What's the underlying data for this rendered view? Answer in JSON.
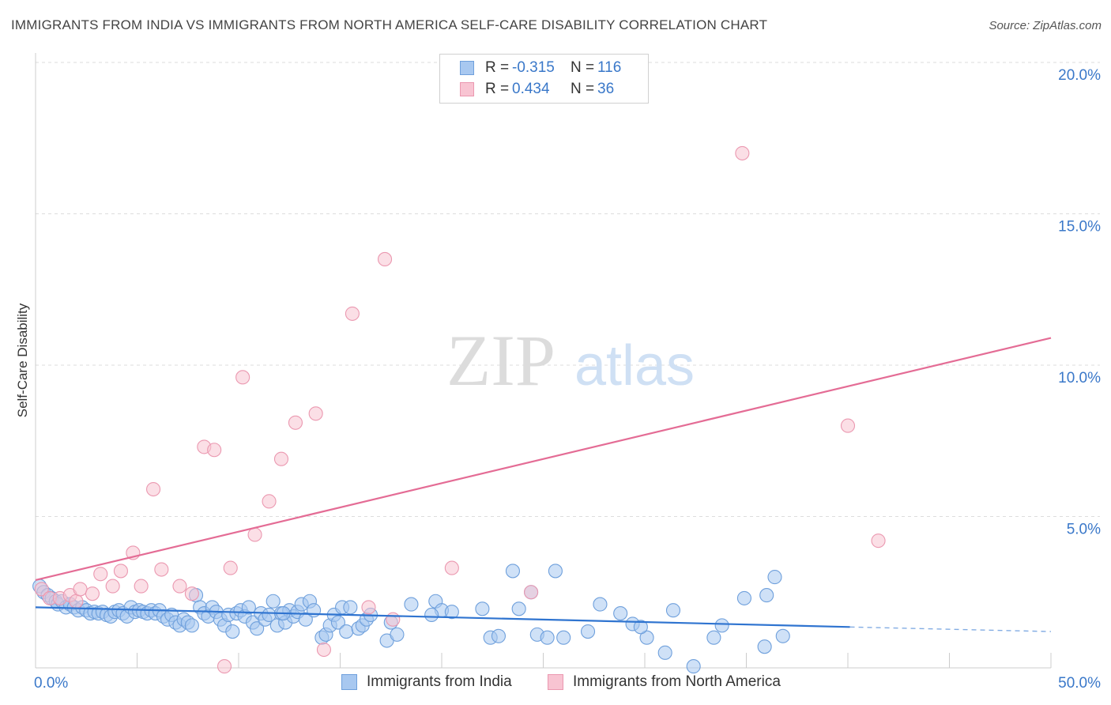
{
  "title": "IMMIGRANTS FROM INDIA VS IMMIGRANTS FROM NORTH AMERICA SELF-CARE DISABILITY CORRELATION CHART",
  "source": "Source: ZipAtlas.com",
  "watermark": {
    "zip": "ZIP",
    "atlas": "atlas"
  },
  "legend": {
    "rows": [
      {
        "r_label": "R =",
        "r_value": "-0.315",
        "n_label": "N =",
        "n_value": "116",
        "color": "#a8c8f0",
        "border": "#6fa0dc"
      },
      {
        "r_label": "R =",
        "r_value": "0.434",
        "n_label": "N =",
        "n_value": "36",
        "color": "#f8c4d2",
        "border": "#eb98b0"
      }
    ]
  },
  "chart_data": {
    "type": "scatter",
    "title": "IMMIGRANTS FROM INDIA VS IMMIGRANTS FROM NORTH AMERICA SELF-CARE DISABILITY CORRELATION CHART",
    "xlabel": "",
    "ylabel": "Self-Care Disability",
    "xlim": [
      0,
      50
    ],
    "ylim": [
      0,
      20
    ],
    "x_tick_labels": [
      "0.0%",
      "50.0%"
    ],
    "y_ticks": [
      5,
      10,
      15,
      20
    ],
    "y_tick_labels": [
      "5.0%",
      "10.0%",
      "15.0%",
      "20.0%"
    ],
    "grid": true,
    "series": [
      {
        "name": "Immigrants from India",
        "color": "#a8c8f0",
        "stroke": "#6fa0dc",
        "line_color": "#2f74d0",
        "trend": {
          "x": [
            0,
            40.1
          ],
          "y": [
            2.0,
            1.35
          ],
          "dash_to_x": 50,
          "dash_to_y": 1.2
        },
        "points": [
          [
            0.2,
            2.7
          ],
          [
            0.4,
            2.5
          ],
          [
            0.6,
            2.4
          ],
          [
            0.8,
            2.3
          ],
          [
            1.0,
            2.2
          ],
          [
            1.1,
            2.1
          ],
          [
            1.3,
            2.2
          ],
          [
            1.5,
            2.0
          ],
          [
            1.7,
            2.1
          ],
          [
            1.9,
            2.0
          ],
          [
            2.1,
            1.9
          ],
          [
            2.3,
            2.0
          ],
          [
            2.5,
            1.9
          ],
          [
            2.7,
            1.8
          ],
          [
            2.9,
            1.85
          ],
          [
            3.1,
            1.8
          ],
          [
            3.3,
            1.85
          ],
          [
            3.5,
            1.75
          ],
          [
            3.7,
            1.7
          ],
          [
            3.9,
            1.85
          ],
          [
            4.1,
            1.9
          ],
          [
            4.3,
            1.8
          ],
          [
            4.5,
            1.7
          ],
          [
            4.7,
            2.0
          ],
          [
            4.9,
            1.85
          ],
          [
            5.1,
            1.9
          ],
          [
            5.3,
            1.85
          ],
          [
            5.5,
            1.8
          ],
          [
            5.7,
            1.9
          ],
          [
            5.9,
            1.8
          ],
          [
            6.1,
            1.9
          ],
          [
            6.3,
            1.7
          ],
          [
            6.5,
            1.6
          ],
          [
            6.7,
            1.75
          ],
          [
            6.9,
            1.5
          ],
          [
            7.1,
            1.4
          ],
          [
            7.3,
            1.6
          ],
          [
            7.5,
            1.5
          ],
          [
            7.7,
            1.4
          ],
          [
            7.9,
            2.4
          ],
          [
            8.1,
            2.0
          ],
          [
            8.3,
            1.8
          ],
          [
            8.5,
            1.7
          ],
          [
            8.7,
            2.0
          ],
          [
            8.9,
            1.85
          ],
          [
            9.1,
            1.6
          ],
          [
            9.3,
            1.4
          ],
          [
            9.5,
            1.75
          ],
          [
            9.7,
            1.2
          ],
          [
            9.9,
            1.8
          ],
          [
            10.1,
            1.9
          ],
          [
            10.3,
            1.7
          ],
          [
            10.5,
            2.0
          ],
          [
            10.7,
            1.5
          ],
          [
            10.9,
            1.3
          ],
          [
            11.1,
            1.8
          ],
          [
            11.3,
            1.6
          ],
          [
            11.5,
            1.75
          ],
          [
            11.7,
            2.2
          ],
          [
            11.9,
            1.4
          ],
          [
            12.1,
            1.8
          ],
          [
            12.3,
            1.5
          ],
          [
            12.5,
            1.9
          ],
          [
            12.7,
            1.7
          ],
          [
            12.9,
            1.85
          ],
          [
            13.1,
            2.1
          ],
          [
            13.3,
            1.6
          ],
          [
            13.5,
            2.2
          ],
          [
            13.7,
            1.9
          ],
          [
            14.1,
            1.0
          ],
          [
            14.3,
            1.1
          ],
          [
            14.5,
            1.4
          ],
          [
            14.7,
            1.75
          ],
          [
            14.9,
            1.5
          ],
          [
            15.1,
            2.0
          ],
          [
            15.3,
            1.2
          ],
          [
            15.5,
            2.0
          ],
          [
            15.9,
            1.3
          ],
          [
            16.1,
            1.4
          ],
          [
            16.3,
            1.6
          ],
          [
            16.5,
            1.75
          ],
          [
            17.3,
            0.9
          ],
          [
            17.5,
            1.5
          ],
          [
            17.8,
            1.1
          ],
          [
            18.5,
            2.1
          ],
          [
            19.7,
            2.2
          ],
          [
            20.0,
            1.9
          ],
          [
            20.5,
            1.85
          ],
          [
            22.0,
            1.95
          ],
          [
            22.4,
            1.0
          ],
          [
            22.8,
            1.05
          ],
          [
            23.5,
            3.2
          ],
          [
            23.8,
            1.95
          ],
          [
            24.4,
            2.5
          ],
          [
            24.7,
            1.1
          ],
          [
            25.2,
            1.0
          ],
          [
            25.6,
            3.2
          ],
          [
            26.0,
            1.0
          ],
          [
            27.2,
            1.2
          ],
          [
            27.8,
            2.1
          ],
          [
            28.8,
            1.8
          ],
          [
            29.4,
            1.45
          ],
          [
            30.1,
            1.0
          ],
          [
            31.0,
            0.5
          ],
          [
            31.4,
            1.9
          ],
          [
            32.4,
            0.05
          ],
          [
            33.4,
            1.0
          ],
          [
            33.8,
            1.4
          ],
          [
            34.9,
            2.3
          ],
          [
            35.9,
            0.7
          ],
          [
            36.0,
            2.4
          ],
          [
            36.4,
            3.0
          ],
          [
            36.8,
            1.05
          ],
          [
            29.8,
            1.35
          ],
          [
            19.5,
            1.75
          ],
          [
            12.2,
            1.8
          ]
        ]
      },
      {
        "name": "Immigrants from North America",
        "color": "#f8c4d2",
        "stroke": "#eb98b0",
        "line_color": "#e46c95",
        "trend": {
          "x": [
            0,
            50
          ],
          "y": [
            2.9,
            10.9
          ]
        },
        "points": [
          [
            0.3,
            2.6
          ],
          [
            0.7,
            2.3
          ],
          [
            1.2,
            2.3
          ],
          [
            1.7,
            2.4
          ],
          [
            2.0,
            2.2
          ],
          [
            2.2,
            2.6
          ],
          [
            2.8,
            2.45
          ],
          [
            3.2,
            3.1
          ],
          [
            3.8,
            2.7
          ],
          [
            4.2,
            3.2
          ],
          [
            4.8,
            3.8
          ],
          [
            5.2,
            2.7
          ],
          [
            5.8,
            5.9
          ],
          [
            6.2,
            3.25
          ],
          [
            7.1,
            2.7
          ],
          [
            7.7,
            2.45
          ],
          [
            8.3,
            7.3
          ],
          [
            8.8,
            7.2
          ],
          [
            9.3,
            0.05
          ],
          [
            9.6,
            3.3
          ],
          [
            10.2,
            9.6
          ],
          [
            10.8,
            4.4
          ],
          [
            11.5,
            5.5
          ],
          [
            12.1,
            6.9
          ],
          [
            12.8,
            8.1
          ],
          [
            13.8,
            8.4
          ],
          [
            14.2,
            0.6
          ],
          [
            15.6,
            11.7
          ],
          [
            16.4,
            2.0
          ],
          [
            17.2,
            13.5
          ],
          [
            17.6,
            1.6
          ],
          [
            20.5,
            3.3
          ],
          [
            24.4,
            2.5
          ],
          [
            34.8,
            17.0
          ],
          [
            40.0,
            8.0
          ],
          [
            41.5,
            4.2
          ]
        ]
      }
    ]
  }
}
